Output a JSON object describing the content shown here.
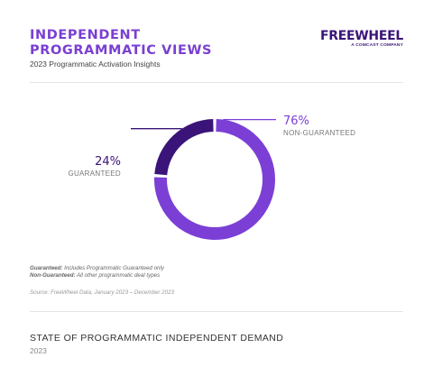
{
  "header": {
    "title_line1": "INDEPENDENT",
    "title_line2": "PROGRAMMATIC VIEWS",
    "subtitle": "2023 Programmatic Activation Insights"
  },
  "logo": {
    "wordmark": "FREEWHEEL",
    "tagline": "A COMCAST COMPANY"
  },
  "notes": {
    "guaranteed_term": "Guaranteed:",
    "guaranteed_text": " Includes Programmatic Guaranteed only",
    "nonguaranteed_term": "Non-Guaranteed:",
    "nonguaranteed_text": " All other programmatic deal types"
  },
  "source": "Source: FreeWheel Data, January 2023 – December 2023",
  "footer": {
    "title": "STATE OF PROGRAMMATIC INDEPENDENT DEMAND",
    "year": "2023"
  },
  "colors": {
    "accent": "#7a3fd1",
    "non_guaranteed": "#7b3fd6",
    "guaranteed": "#3a1478"
  },
  "chart_data": {
    "type": "pie",
    "style": "donut",
    "slices": [
      {
        "label": "NON-GUARANTEED",
        "value": 76,
        "display": "76%",
        "color": "#7b3fd6"
      },
      {
        "label": "GUARANTEED",
        "value": 24,
        "display": "24%",
        "color": "#3a1478"
      }
    ]
  }
}
